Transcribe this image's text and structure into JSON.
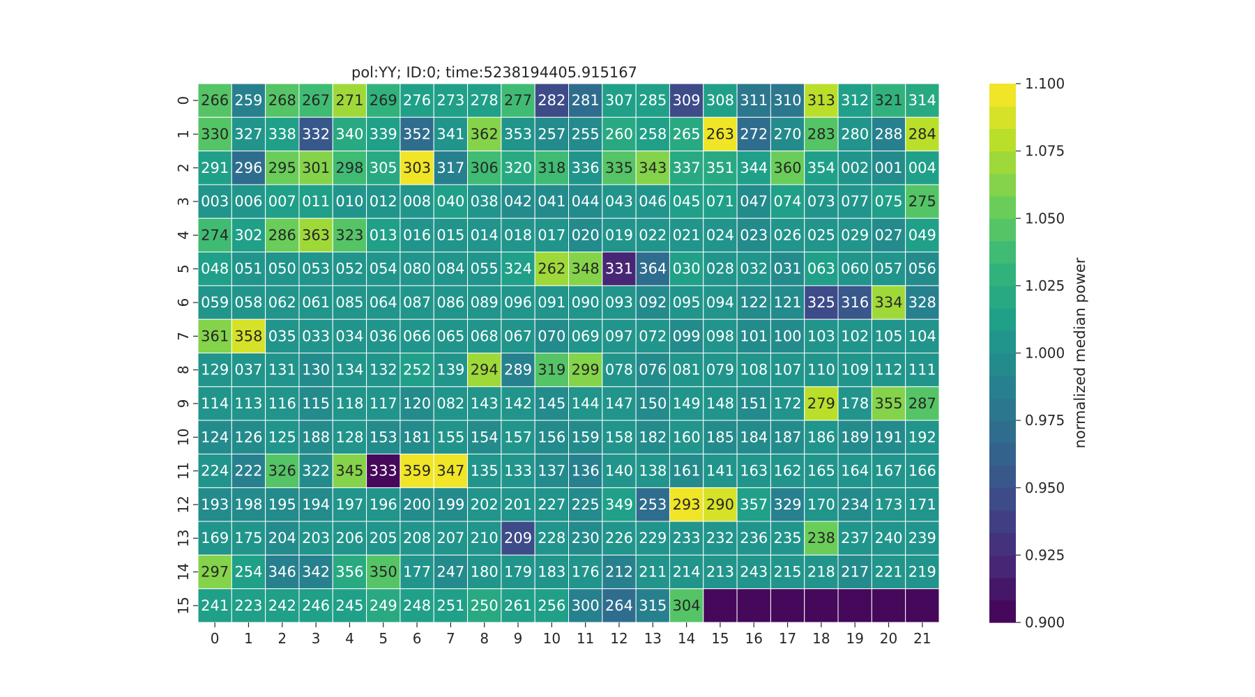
{
  "chart_data": {
    "type": "heatmap",
    "title": "pol:YY; ID:0; time:5238194405.915167",
    "x_tick_labels": [
      "0",
      "1",
      "2",
      "3",
      "4",
      "5",
      "6",
      "7",
      "8",
      "9",
      "10",
      "11",
      "12",
      "13",
      "14",
      "15",
      "16",
      "17",
      "18",
      "19",
      "20",
      "21"
    ],
    "y_tick_labels": [
      "0",
      "1",
      "2",
      "3",
      "4",
      "5",
      "6",
      "7",
      "8",
      "9",
      "10",
      "11",
      "12",
      "13",
      "14",
      "15"
    ],
    "annotations": [
      [
        "266",
        "259",
        "268",
        "267",
        "271",
        "269",
        "276",
        "273",
        "278",
        "277",
        "282",
        "281",
        "307",
        "285",
        "309",
        "308",
        "311",
        "310",
        "313",
        "312",
        "321",
        "314"
      ],
      [
        "330",
        "327",
        "338",
        "332",
        "340",
        "339",
        "352",
        "341",
        "362",
        "353",
        "257",
        "255",
        "260",
        "258",
        "265",
        "263",
        "272",
        "270",
        "283",
        "280",
        "288",
        "284"
      ],
      [
        "291",
        "296",
        "295",
        "301",
        "298",
        "305",
        "303",
        "317",
        "306",
        "320",
        "318",
        "336",
        "335",
        "343",
        "337",
        "351",
        "344",
        "360",
        "354",
        "002",
        "001",
        "004"
      ],
      [
        "003",
        "006",
        "007",
        "011",
        "010",
        "012",
        "008",
        "040",
        "038",
        "042",
        "041",
        "044",
        "043",
        "046",
        "045",
        "071",
        "047",
        "074",
        "073",
        "077",
        "075",
        "275"
      ],
      [
        "274",
        "302",
        "286",
        "363",
        "323",
        "013",
        "016",
        "015",
        "014",
        "018",
        "017",
        "020",
        "019",
        "022",
        "021",
        "024",
        "023",
        "026",
        "025",
        "029",
        "027",
        "049"
      ],
      [
        "048",
        "051",
        "050",
        "053",
        "052",
        "054",
        "080",
        "084",
        "055",
        "324",
        "262",
        "348",
        "331",
        "364",
        "030",
        "028",
        "032",
        "031",
        "063",
        "060",
        "057",
        "056"
      ],
      [
        "059",
        "058",
        "062",
        "061",
        "085",
        "064",
        "087",
        "086",
        "089",
        "096",
        "091",
        "090",
        "093",
        "092",
        "095",
        "094",
        "122",
        "121",
        "325",
        "316",
        "334",
        "328"
      ],
      [
        "361",
        "358",
        "035",
        "033",
        "034",
        "036",
        "066",
        "065",
        "068",
        "067",
        "070",
        "069",
        "097",
        "072",
        "099",
        "098",
        "101",
        "100",
        "103",
        "102",
        "105",
        "104"
      ],
      [
        "129",
        "037",
        "131",
        "130",
        "134",
        "132",
        "252",
        "139",
        "294",
        "289",
        "319",
        "299",
        "078",
        "076",
        "081",
        "079",
        "108",
        "107",
        "110",
        "109",
        "112",
        "111"
      ],
      [
        "114",
        "113",
        "116",
        "115",
        "118",
        "117",
        "120",
        "082",
        "143",
        "142",
        "145",
        "144",
        "147",
        "150",
        "149",
        "148",
        "151",
        "172",
        "279",
        "178",
        "355",
        "287"
      ],
      [
        "124",
        "126",
        "125",
        "188",
        "128",
        "153",
        "181",
        "155",
        "154",
        "157",
        "156",
        "159",
        "158",
        "182",
        "160",
        "185",
        "184",
        "187",
        "186",
        "189",
        "191",
        "192"
      ],
      [
        "224",
        "222",
        "326",
        "322",
        "345",
        "333",
        "359",
        "347",
        "135",
        "133",
        "137",
        "136",
        "140",
        "138",
        "161",
        "141",
        "163",
        "162",
        "165",
        "164",
        "167",
        "166"
      ],
      [
        "193",
        "198",
        "195",
        "194",
        "197",
        "196",
        "200",
        "199",
        "202",
        "201",
        "227",
        "225",
        "349",
        "253",
        "293",
        "290",
        "357",
        "329",
        "170",
        "234",
        "173",
        "171"
      ],
      [
        "169",
        "175",
        "204",
        "203",
        "206",
        "205",
        "208",
        "207",
        "210",
        "209",
        "228",
        "230",
        "226",
        "229",
        "233",
        "232",
        "236",
        "235",
        "238",
        "237",
        "240",
        "239"
      ],
      [
        "297",
        "254",
        "346",
        "342",
        "356",
        "350",
        "177",
        "247",
        "180",
        "179",
        "183",
        "176",
        "212",
        "211",
        "214",
        "213",
        "243",
        "215",
        "218",
        "217",
        "221",
        "219"
      ],
      [
        "241",
        "223",
        "242",
        "246",
        "245",
        "249",
        "248",
        "251",
        "250",
        "261",
        "256",
        "300",
        "264",
        "315",
        "304",
        "",
        "",
        "",
        "",
        "",
        "",
        ""
      ]
    ],
    "values": [
      [
        1.045,
        0.985,
        1.045,
        1.04,
        1.07,
        1.03,
        1.01,
        1.01,
        1.01,
        1.035,
        0.945,
        0.975,
        1.01,
        1.01,
        0.95,
        1.015,
        0.98,
        0.98,
        1.08,
        1.015,
        1.03,
        1.02
      ],
      [
        1.05,
        1.005,
        1.015,
        0.955,
        1.02,
        1.015,
        0.97,
        1.005,
        1.06,
        1.005,
        1.0,
        1.0,
        1.02,
        1.015,
        1.02,
        1.095,
        0.975,
        1.0,
        1.045,
        1.005,
        0.985,
        1.08
      ],
      [
        1.015,
        0.97,
        1.055,
        1.065,
        1.035,
        1.025,
        1.1,
        0.985,
        1.04,
        1.02,
        1.04,
        1.005,
        1.045,
        1.06,
        1.025,
        1.025,
        1.01,
        1.055,
        1.015,
        1.005,
        1.0,
        1.01
      ],
      [
        1.005,
        1.005,
        1.01,
        1.01,
        1.005,
        1.005,
        1.005,
        1.01,
        1.005,
        1.0,
        1.0,
        1.0,
        1.005,
        1.005,
        1.01,
        1.01,
        1.0,
        1.01,
        1.005,
        1.005,
        1.01,
        1.045
      ],
      [
        1.035,
        1.01,
        1.055,
        1.075,
        1.05,
        1.01,
        1.005,
        1.005,
        1.005,
        1.005,
        1.005,
        1.0,
        1.005,
        1.005,
        1.005,
        1.005,
        1.0,
        1.005,
        1.005,
        1.005,
        1.0,
        1.01
      ],
      [
        1.01,
        1.005,
        1.005,
        1.005,
        1.005,
        1.005,
        1.005,
        1.005,
        1.005,
        1.015,
        1.07,
        1.06,
        0.92,
        0.975,
        1.01,
        1.005,
        1.005,
        1.0,
        1.015,
        1.005,
        1.005,
        1.0
      ],
      [
        1.005,
        1.005,
        1.005,
        1.005,
        1.005,
        1.005,
        1.005,
        1.005,
        1.005,
        1.005,
        1.005,
        1.005,
        1.005,
        1.0,
        1.005,
        1.005,
        1.0,
        1.0,
        0.95,
        0.955,
        1.075,
        0.985
      ],
      [
        1.065,
        1.085,
        1.005,
        1.005,
        1.005,
        1.005,
        1.005,
        1.005,
        1.005,
        1.005,
        1.0,
        1.005,
        1.005,
        1.005,
        1.0,
        1.005,
        1.0,
        1.0,
        1.005,
        1.005,
        1.005,
        1.005
      ],
      [
        1.005,
        1.005,
        1.005,
        1.0,
        1.005,
        1.005,
        1.015,
        1.005,
        1.07,
        0.99,
        1.05,
        1.065,
        1.005,
        1.0,
        1.005,
        1.005,
        1.005,
        1.005,
        1.005,
        1.005,
        1.005,
        1.005
      ],
      [
        1.005,
        1.005,
        1.005,
        1.0,
        1.005,
        1.005,
        1.0,
        1.005,
        1.005,
        1.005,
        1.0,
        1.005,
        1.005,
        1.0,
        1.005,
        1.005,
        1.0,
        1.005,
        1.08,
        1.005,
        1.065,
        1.045
      ],
      [
        1.0,
        1.0,
        1.005,
        1.0,
        1.005,
        1.0,
        1.0,
        1.005,
        1.0,
        1.005,
        1.0,
        1.0,
        1.005,
        1.0,
        1.005,
        1.0,
        1.0,
        1.0,
        1.005,
        1.0,
        1.0,
        1.005
      ],
      [
        1.005,
        0.985,
        1.05,
        1.0,
        1.06,
        0.9,
        1.1,
        1.1,
        1.005,
        1.005,
        1.0,
        0.985,
        1.005,
        1.005,
        1.0,
        1.005,
        1.005,
        1.005,
        1.005,
        1.005,
        1.005,
        1.005
      ],
      [
        1.0,
        1.0,
        1.0,
        1.0,
        1.005,
        1.005,
        1.0,
        1.0,
        1.005,
        1.005,
        1.005,
        1.0,
        1.015,
        0.975,
        1.1,
        1.09,
        1.015,
        0.985,
        1.005,
        1.0,
        1.005,
        1.005
      ],
      [
        1.005,
        1.005,
        1.0,
        1.005,
        1.005,
        1.005,
        1.005,
        1.005,
        1.005,
        0.95,
        1.005,
        1.0,
        1.005,
        1.005,
        1.005,
        1.005,
        1.005,
        1.005,
        1.055,
        1.005,
        1.005,
        1.005
      ],
      [
        1.06,
        1.015,
        0.99,
        0.99,
        1.02,
        1.045,
        1.005,
        1.0,
        1.005,
        1.005,
        1.005,
        1.005,
        0.99,
        1.005,
        1.005,
        1.005,
        1.005,
        1.005,
        1.005,
        1.0,
        1.005,
        1.005
      ],
      [
        1.015,
        1.015,
        1.015,
        1.01,
        1.01,
        1.02,
        1.015,
        1.015,
        1.02,
        1.015,
        1.015,
        0.985,
        0.97,
        0.985,
        1.05,
        0.9,
        0.9,
        0.9,
        0.9,
        0.9,
        0.9,
        0.9
      ]
    ],
    "colorbar": {
      "label": "normalized median power",
      "range": [
        0.9,
        1.1
      ],
      "tick_labels": [
        "1.100",
        "1.075",
        "1.050",
        "1.025",
        "1.000",
        "0.975",
        "0.950",
        "0.925",
        "0.900"
      ],
      "levels": 24
    },
    "colormap": [
      "#440154",
      "#482878",
      "#3e4989",
      "#31688e",
      "#26828e",
      "#1f9e89",
      "#35b779",
      "#6ece58",
      "#b5de2b",
      "#fde725"
    ],
    "cell_border_color": "#ffffff"
  }
}
